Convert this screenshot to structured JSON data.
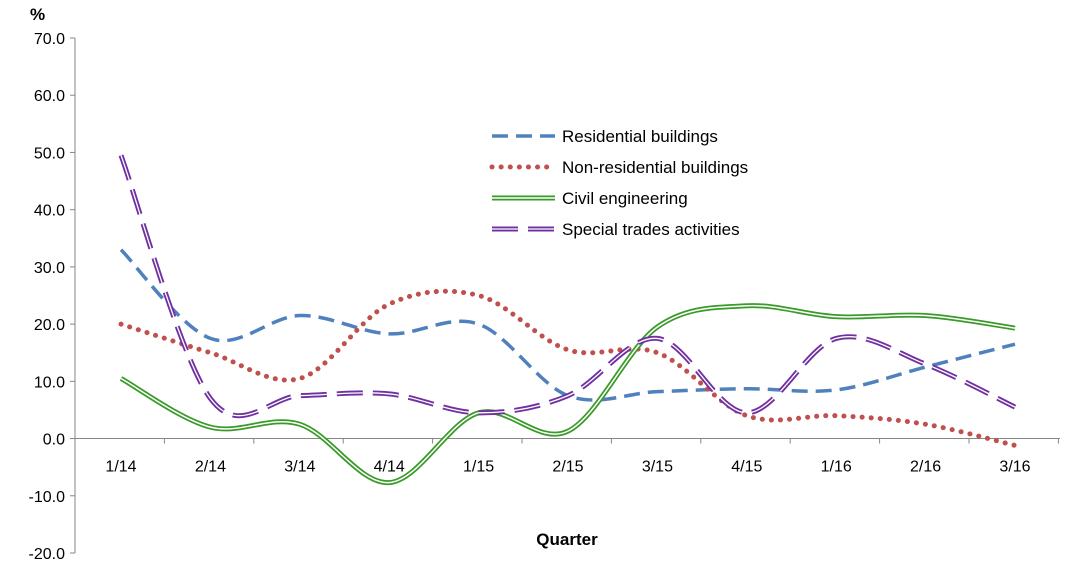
{
  "chart_data": {
    "type": "line",
    "title": "",
    "xlabel": "Quarter",
    "ylabel": "%",
    "ylim": [
      -20,
      70
    ],
    "yticks": [
      -20,
      -10,
      0,
      10,
      20,
      30,
      40,
      50,
      60,
      70
    ],
    "ytick_labels": [
      "-20.0",
      "-10.0",
      "0.0",
      "10.0",
      "20.0",
      "30.0",
      "40.0",
      "50.0",
      "60.0",
      "70.0"
    ],
    "grid": false,
    "legend_position": "upper-center-right",
    "categories": [
      "1/14",
      "2/14",
      "3/14",
      "4/14",
      "1/15",
      "2/15",
      "3/15",
      "4/15",
      "1/16",
      "2/16",
      "3/16"
    ],
    "series": [
      {
        "name": "Residential buildings",
        "color": "#4F81BD",
        "style": "dashed",
        "values": [
          33,
          17.5,
          21.5,
          18.3,
          20,
          7.5,
          8.2,
          8.7,
          8.5,
          12.5,
          16.5
        ]
      },
      {
        "name": "Non-residential buildings",
        "color": "#C0504D",
        "style": "dotted",
        "values": [
          20,
          15,
          10.5,
          23.5,
          25,
          15.5,
          15,
          4,
          4,
          2.5,
          -1.2
        ]
      },
      {
        "name": "Civil engineering",
        "color": "#3A9A2A",
        "style": "double",
        "values": [
          10.5,
          2,
          2.5,
          -7.7,
          4.5,
          1.3,
          19.5,
          23.2,
          21.3,
          21.5,
          19.3
        ]
      },
      {
        "name": "Special trades activities",
        "color": "#7030A0",
        "style": "long-dashed",
        "values": [
          49.5,
          7,
          7.5,
          7.8,
          4.5,
          7.5,
          17.5,
          4.5,
          17.5,
          13,
          5.5
        ]
      }
    ]
  }
}
